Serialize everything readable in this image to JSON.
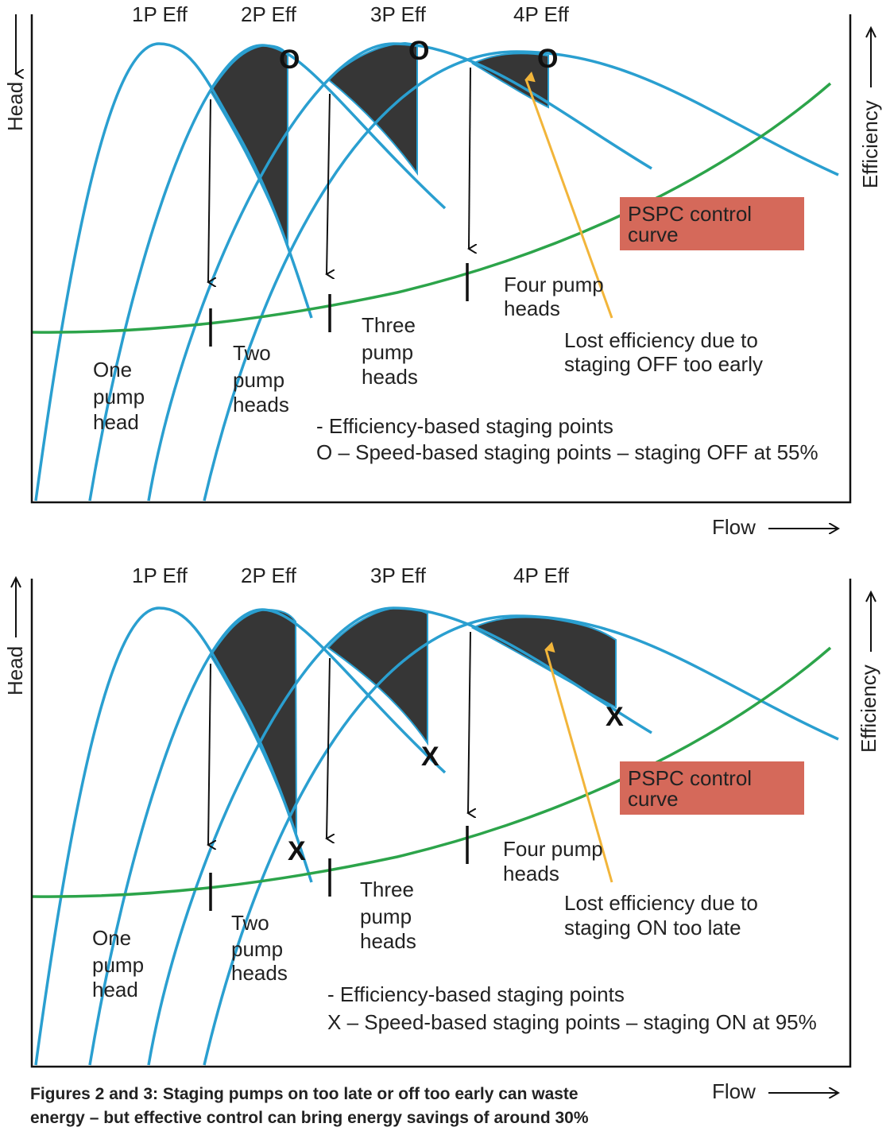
{
  "colors": {
    "pump_curves": "#2a9fd0",
    "pspc_curve": "#2ca44a",
    "lost_efficiency_arrow": "#f2b53a",
    "pspc_box": "#d5695a",
    "lost_efficiency_area": "#363636"
  },
  "panels": [
    {
      "eff_labels": [
        "1P Eff",
        "2P Eff",
        "3P Eff",
        "4P Eff"
      ],
      "y_left": "Head",
      "y_right": "Efficiency",
      "x_axis": "Flow",
      "pspc": [
        "PSPC control",
        "curve"
      ],
      "one": [
        "One",
        "pump",
        "head"
      ],
      "two": [
        "Two",
        "pump",
        "heads"
      ],
      "three": [
        "Three",
        "pump",
        "heads"
      ],
      "four": [
        "Four pump",
        "heads"
      ],
      "lost": [
        "Lost efficiency due to",
        "staging OFF too early"
      ],
      "marker": "O",
      "legend": [
        "- Efficiency-based staging points",
        "O – Speed-based staging points – staging OFF at 55%"
      ]
    },
    {
      "eff_labels": [
        "1P Eff",
        "2P Eff",
        "3P Eff",
        "4P Eff"
      ],
      "y_left": "Head",
      "y_right": "Efficiency",
      "x_axis": "Flow",
      "pspc": [
        "PSPC control",
        "curve"
      ],
      "one": [
        "One",
        "pump",
        "head"
      ],
      "two": [
        "Two",
        "pump",
        "heads"
      ],
      "three": [
        "Three",
        "pump",
        "heads"
      ],
      "four": [
        "Four pump",
        "heads"
      ],
      "lost": [
        "Lost efficiency due to",
        "staging ON too late"
      ],
      "marker": "X",
      "legend": [
        "- Efficiency-based staging points",
        "X – Speed-based staging points – staging ON at 95%"
      ]
    }
  ],
  "caption": [
    "Figures 2 and 3: Staging pumps on too late or off too early can waste",
    "energy – but effective control can bring energy savings of around 30%"
  ]
}
